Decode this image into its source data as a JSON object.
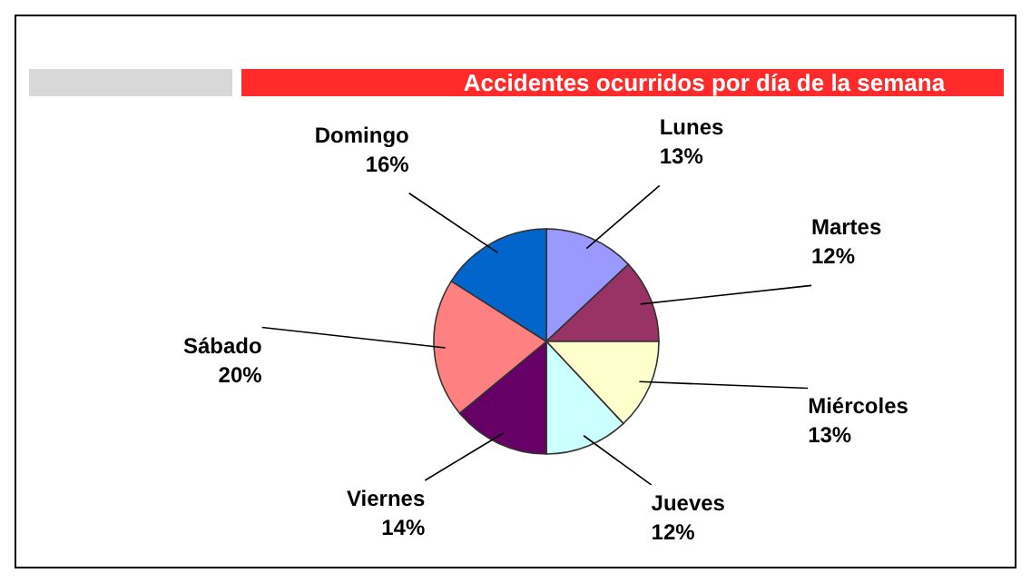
{
  "chart_data": {
    "type": "pie",
    "title": "Accidentes ocurridos por día de la semana",
    "categories": [
      "Lunes",
      "Martes",
      "Miércoles",
      "Jueves",
      "Viernes",
      "Sábado",
      "Domingo"
    ],
    "values": [
      13,
      12,
      13,
      12,
      14,
      20,
      16
    ],
    "value_labels": [
      "13%",
      "12%",
      "13%",
      "12%",
      "14%",
      "20%",
      "16%"
    ],
    "colors": [
      "#9999ff",
      "#993366",
      "#ffffcc",
      "#ccffff",
      "#660066",
      "#ff8080",
      "#0066cc"
    ]
  }
}
